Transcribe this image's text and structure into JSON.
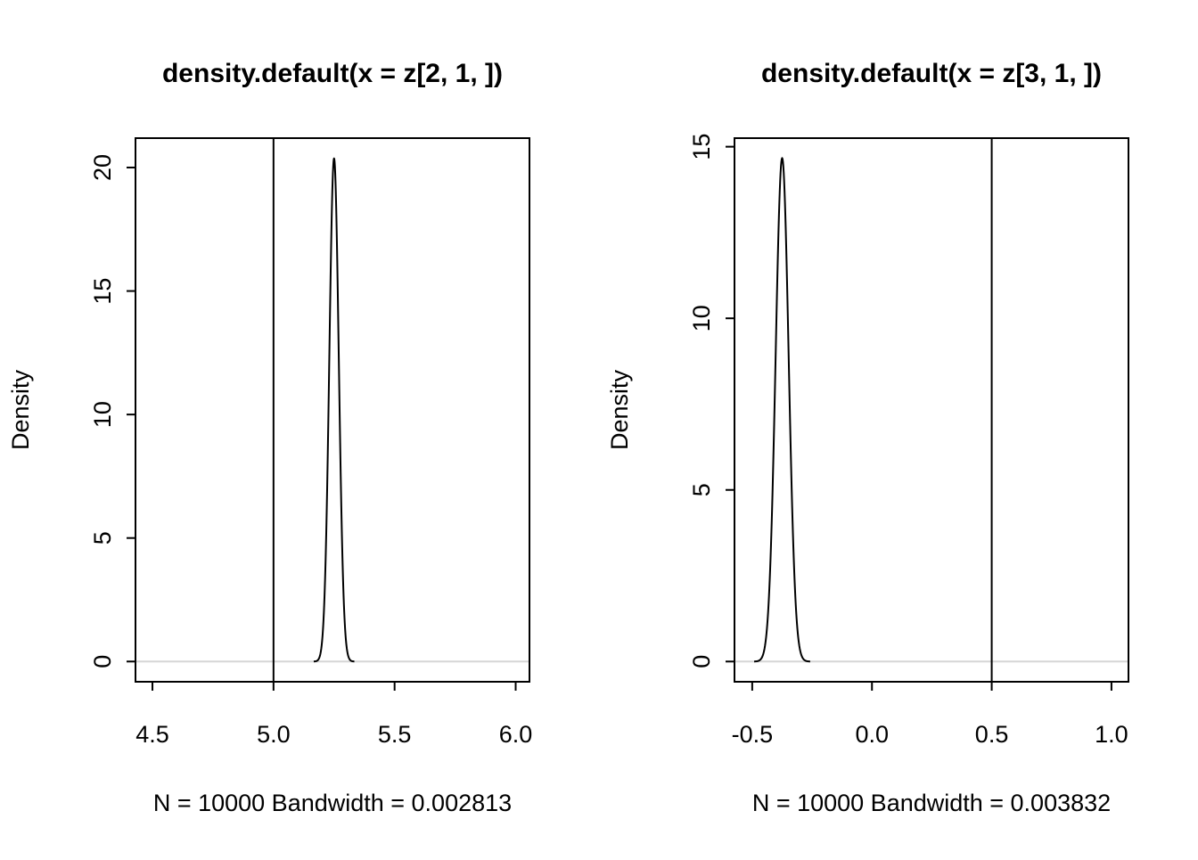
{
  "colors": {
    "curve": "#000000",
    "vline": "#000000",
    "hline": "#d6d6d6",
    "box": "#000000",
    "background": "#ffffff"
  },
  "chart_data": [
    {
      "type": "line",
      "subtype": "density",
      "title": "density.default(x = z[2, 1, ])",
      "xlabel": "N = 10000   Bandwidth = 0.002813",
      "ylabel": "Density",
      "x_ticks": [
        4.5,
        5.0,
        5.5,
        6.0
      ],
      "x_tick_labels": [
        "4.5",
        "5.0",
        "5.5",
        "6.0"
      ],
      "y_ticks": [
        0,
        5,
        10,
        15,
        20
      ],
      "y_tick_labels": [
        "0",
        "5",
        "10",
        "15",
        "20"
      ],
      "xlim": [
        4.43,
        6.057
      ],
      "ylim": [
        -0.82,
        21.19
      ],
      "vline_x": 5.0,
      "hline_y": 0,
      "density": {
        "mean": 5.25,
        "sd": 0.0195,
        "peak": 20.37,
        "n": 10000,
        "bandwidth": 0.002813
      },
      "grid": false,
      "legend": null
    },
    {
      "type": "line",
      "subtype": "density",
      "title": "density.default(x = z[3, 1, ])",
      "xlabel": "N = 10000   Bandwidth = 0.003832",
      "ylabel": "Density",
      "x_ticks": [
        -0.5,
        0.0,
        0.5,
        1.0
      ],
      "x_tick_labels": [
        "-0.5",
        "0.0",
        "0.5",
        "1.0"
      ],
      "y_ticks": [
        0,
        5,
        10,
        15
      ],
      "y_tick_labels": [
        "0",
        "5",
        "10",
        "15"
      ],
      "xlim": [
        -0.574,
        1.071
      ],
      "ylim": [
        -0.59,
        15.25
      ],
      "vline_x": 0.5,
      "hline_y": 0,
      "density": {
        "mean": -0.375,
        "sd": 0.0272,
        "peak": 14.67,
        "n": 10000,
        "bandwidth": 0.003832
      },
      "grid": false,
      "legend": null
    }
  ]
}
